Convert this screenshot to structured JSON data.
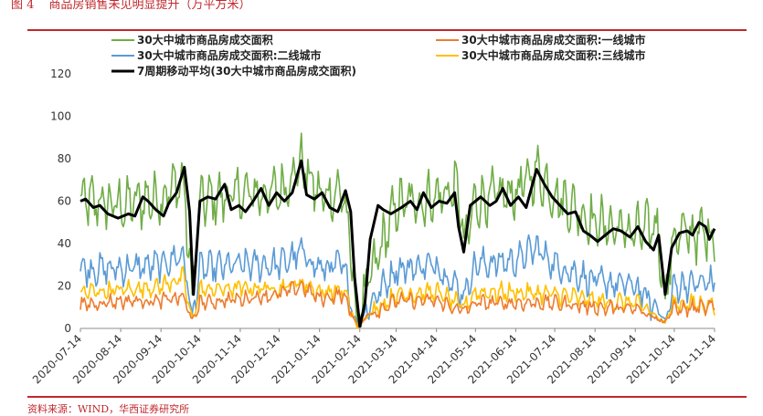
{
  "header": {
    "figure_label": "图 4",
    "figure_title": "商品房销售未见明显提升（万平方米）"
  },
  "footer": {
    "source": "资料来源：WIND，华西证券研究所"
  },
  "colors": {
    "accent_red": "#c0282d",
    "total": "#70ad47",
    "tier1": "#ed7d31",
    "tier2": "#5b9bd5",
    "tier3": "#ffc000",
    "ma7": "#000000"
  },
  "chart_data": {
    "type": "line",
    "ylim": [
      0,
      120
    ],
    "yticks": [
      0,
      20,
      40,
      60,
      80,
      100,
      120
    ],
    "x_start": "2020-07-14",
    "x_end": "2021-11-14",
    "xticks": [
      "2020-07-14",
      "2020-08-14",
      "2020-09-14",
      "2020-10-14",
      "2020-11-14",
      "2020-12-14",
      "2021-01-14",
      "2021-02-14",
      "2021-03-14",
      "2021-04-14",
      "2021-05-14",
      "2021-06-14",
      "2021-07-14",
      "2021-08-14",
      "2021-09-14",
      "2021-10-14",
      "2021-11-14"
    ],
    "grid": false,
    "legend_position": "top",
    "series": [
      {
        "name": "30大中城市商品房成交面积",
        "color": "#70ad47",
        "level": 60,
        "amp": 14,
        "anchors": [
          [
            "2020-07-14",
            60
          ],
          [
            "2020-08-14",
            58
          ],
          [
            "2020-09-14",
            62
          ],
          [
            "2020-10-01",
            70
          ],
          [
            "2020-10-08",
            16
          ],
          [
            "2020-10-14",
            60
          ],
          [
            "2020-11-14",
            63
          ],
          [
            "2020-12-14",
            64
          ],
          [
            "2020-12-31",
            78
          ],
          [
            "2021-01-14",
            62
          ],
          [
            "2021-02-01",
            65
          ],
          [
            "2021-02-08",
            30
          ],
          [
            "2021-02-12",
            2
          ],
          [
            "2021-02-20",
            20
          ],
          [
            "2021-03-14",
            58
          ],
          [
            "2021-04-14",
            62
          ],
          [
            "2021-05-01",
            66
          ],
          [
            "2021-05-05",
            38
          ],
          [
            "2021-05-14",
            60
          ],
          [
            "2021-06-14",
            64
          ],
          [
            "2021-06-30",
            74
          ],
          [
            "2021-07-14",
            63
          ],
          [
            "2021-08-14",
            50
          ],
          [
            "2021-09-14",
            45
          ],
          [
            "2021-10-01",
            48
          ],
          [
            "2021-10-07",
            14
          ],
          [
            "2021-10-14",
            44
          ],
          [
            "2021-11-14",
            45
          ]
        ]
      },
      {
        "name": "30大中城市商品房成交面积:一线城市",
        "color": "#ed7d31",
        "level": 13,
        "amp": 4,
        "anchors": [
          [
            "2020-07-14",
            11
          ],
          [
            "2020-08-14",
            13
          ],
          [
            "2020-09-14",
            13
          ],
          [
            "2020-10-01",
            15
          ],
          [
            "2020-10-08",
            4
          ],
          [
            "2020-10-14",
            12
          ],
          [
            "2020-11-14",
            14
          ],
          [
            "2020-12-14",
            16
          ],
          [
            "2020-12-31",
            20
          ],
          [
            "2021-01-14",
            14
          ],
          [
            "2021-02-01",
            16
          ],
          [
            "2021-02-12",
            1
          ],
          [
            "2021-02-20",
            6
          ],
          [
            "2021-03-14",
            13
          ],
          [
            "2021-04-14",
            13
          ],
          [
            "2021-05-05",
            8
          ],
          [
            "2021-05-14",
            12
          ],
          [
            "2021-06-14",
            12
          ],
          [
            "2021-07-14",
            12
          ],
          [
            "2021-08-14",
            10
          ],
          [
            "2021-09-14",
            9
          ],
          [
            "2021-10-07",
            3
          ],
          [
            "2021-10-14",
            9
          ],
          [
            "2021-11-14",
            10
          ]
        ]
      },
      {
        "name": "30大中城市商品房成交面积:二线城市",
        "color": "#5b9bd5",
        "level": 30,
        "amp": 8,
        "anchors": [
          [
            "2020-07-14",
            28
          ],
          [
            "2020-08-14",
            28
          ],
          [
            "2020-09-14",
            30
          ],
          [
            "2020-10-01",
            35
          ],
          [
            "2020-10-08",
            6
          ],
          [
            "2020-10-14",
            28
          ],
          [
            "2020-11-14",
            30
          ],
          [
            "2020-12-14",
            30
          ],
          [
            "2020-12-31",
            36
          ],
          [
            "2021-01-14",
            28
          ],
          [
            "2021-02-01",
            30
          ],
          [
            "2021-02-12",
            1
          ],
          [
            "2021-02-20",
            10
          ],
          [
            "2021-03-14",
            28
          ],
          [
            "2021-04-14",
            30
          ],
          [
            "2021-05-05",
            16
          ],
          [
            "2021-05-14",
            30
          ],
          [
            "2021-06-14",
            32
          ],
          [
            "2021-06-30",
            38
          ],
          [
            "2021-07-14",
            30
          ],
          [
            "2021-08-14",
            22
          ],
          [
            "2021-09-14",
            20
          ],
          [
            "2021-10-07",
            4
          ],
          [
            "2021-10-14",
            20
          ],
          [
            "2021-11-14",
            22
          ]
        ]
      },
      {
        "name": "30大中城市商品房成交面积:三线城市",
        "color": "#ffc000",
        "level": 18,
        "amp": 5,
        "anchors": [
          [
            "2020-07-14",
            17
          ],
          [
            "2020-08-14",
            18
          ],
          [
            "2020-09-14",
            20
          ],
          [
            "2020-10-01",
            24
          ],
          [
            "2020-10-08",
            5
          ],
          [
            "2020-10-14",
            18
          ],
          [
            "2020-11-14",
            19
          ],
          [
            "2020-12-14",
            19
          ],
          [
            "2020-12-31",
            22
          ],
          [
            "2021-01-14",
            17
          ],
          [
            "2021-02-01",
            18
          ],
          [
            "2021-02-12",
            1
          ],
          [
            "2021-02-20",
            6
          ],
          [
            "2021-03-14",
            16
          ],
          [
            "2021-04-14",
            17
          ],
          [
            "2021-05-05",
            10
          ],
          [
            "2021-05-14",
            17
          ],
          [
            "2021-06-14",
            17
          ],
          [
            "2021-07-14",
            16
          ],
          [
            "2021-08-14",
            13
          ],
          [
            "2021-09-14",
            12
          ],
          [
            "2021-10-07",
            3
          ],
          [
            "2021-10-14",
            12
          ],
          [
            "2021-11-14",
            11
          ]
        ]
      },
      {
        "name": "7周期移动平均(30大中城市商品房成交面积)",
        "color": "#000000",
        "anchors": [
          [
            "2020-07-14",
            60
          ],
          [
            "2020-07-18",
            61
          ],
          [
            "2020-07-24",
            57
          ],
          [
            "2020-07-29",
            58
          ],
          [
            "2020-08-04",
            54
          ],
          [
            "2020-08-12",
            52
          ],
          [
            "2020-08-20",
            54
          ],
          [
            "2020-08-25",
            53
          ],
          [
            "2020-08-31",
            62
          ],
          [
            "2020-09-04",
            60
          ],
          [
            "2020-09-10",
            56
          ],
          [
            "2020-09-16",
            53
          ],
          [
            "2020-09-20",
            59
          ],
          [
            "2020-09-26",
            64
          ],
          [
            "2020-10-02",
            76
          ],
          [
            "2020-10-06",
            55
          ],
          [
            "2020-10-09",
            16
          ],
          [
            "2020-10-14",
            60
          ],
          [
            "2020-10-20",
            62
          ],
          [
            "2020-10-26",
            61
          ],
          [
            "2020-11-02",
            68
          ],
          [
            "2020-11-07",
            56
          ],
          [
            "2020-11-13",
            58
          ],
          [
            "2020-11-18",
            55
          ],
          [
            "2020-11-24",
            60
          ],
          [
            "2020-11-30",
            66
          ],
          [
            "2020-12-06",
            58
          ],
          [
            "2020-12-12",
            64
          ],
          [
            "2020-12-18",
            60
          ],
          [
            "2020-12-24",
            64
          ],
          [
            "2020-12-31",
            79
          ],
          [
            "2021-01-04",
            63
          ],
          [
            "2021-01-10",
            61
          ],
          [
            "2021-01-16",
            64
          ],
          [
            "2021-01-22",
            57
          ],
          [
            "2021-01-28",
            55
          ],
          [
            "2021-02-03",
            65
          ],
          [
            "2021-02-07",
            55
          ],
          [
            "2021-02-10",
            24
          ],
          [
            "2021-02-14",
            1
          ],
          [
            "2021-02-18",
            12
          ],
          [
            "2021-02-22",
            42
          ],
          [
            "2021-02-28",
            58
          ],
          [
            "2021-03-04",
            56
          ],
          [
            "2021-03-10",
            54
          ],
          [
            "2021-03-18",
            57
          ],
          [
            "2021-03-25",
            60
          ],
          [
            "2021-03-30",
            56
          ],
          [
            "2021-04-04",
            64
          ],
          [
            "2021-04-10",
            57
          ],
          [
            "2021-04-16",
            60
          ],
          [
            "2021-04-22",
            59
          ],
          [
            "2021-04-28",
            64
          ],
          [
            "2021-05-01",
            48
          ],
          [
            "2021-05-05",
            36
          ],
          [
            "2021-05-10",
            58
          ],
          [
            "2021-05-18",
            62
          ],
          [
            "2021-05-25",
            58
          ],
          [
            "2021-05-30",
            60
          ],
          [
            "2021-06-04",
            66
          ],
          [
            "2021-06-10",
            58
          ],
          [
            "2021-06-16",
            62
          ],
          [
            "2021-06-22",
            57
          ],
          [
            "2021-06-30",
            75
          ],
          [
            "2021-07-06",
            68
          ],
          [
            "2021-07-12",
            62
          ],
          [
            "2021-07-18",
            58
          ],
          [
            "2021-07-24",
            54
          ],
          [
            "2021-07-30",
            55
          ],
          [
            "2021-08-05",
            46
          ],
          [
            "2021-08-10",
            44
          ],
          [
            "2021-08-16",
            41
          ],
          [
            "2021-08-22",
            44
          ],
          [
            "2021-08-28",
            47
          ],
          [
            "2021-09-03",
            46
          ],
          [
            "2021-09-10",
            43
          ],
          [
            "2021-09-16",
            48
          ],
          [
            "2021-09-22",
            41
          ],
          [
            "2021-09-28",
            37
          ],
          [
            "2021-10-02",
            44
          ],
          [
            "2021-10-07",
            16
          ],
          [
            "2021-10-12",
            38
          ],
          [
            "2021-10-18",
            45
          ],
          [
            "2021-10-24",
            46
          ],
          [
            "2021-10-28",
            44
          ],
          [
            "2021-11-02",
            50
          ],
          [
            "2021-11-07",
            48
          ],
          [
            "2021-11-10",
            42
          ],
          [
            "2021-11-14",
            47
          ]
        ]
      }
    ]
  }
}
